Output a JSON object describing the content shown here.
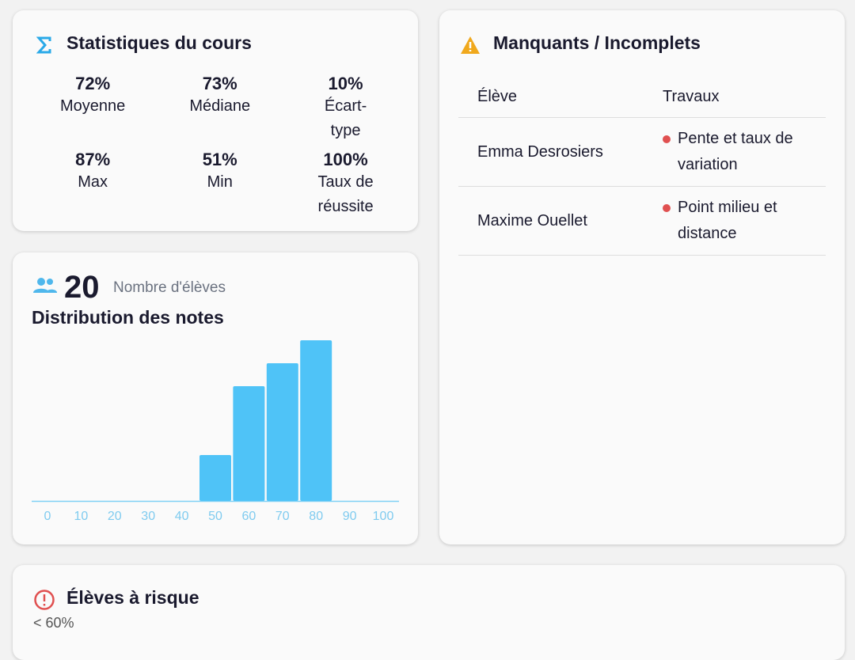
{
  "stats": {
    "title": "Statistiques du cours",
    "items": [
      {
        "value": "72%",
        "label": "Moyenne"
      },
      {
        "value": "73%",
        "label": "Médiane"
      },
      {
        "value": "10%",
        "label": "Écart-type"
      },
      {
        "value": "87%",
        "label": "Max"
      },
      {
        "value": "51%",
        "label": "Min"
      },
      {
        "value": "100%",
        "label": "Taux de réussite"
      }
    ]
  },
  "missing": {
    "title": "Manquants / Incomplets",
    "headers": [
      "Élève",
      "Travaux"
    ],
    "rows": [
      {
        "student": "Emma Desrosiers",
        "work": "Pente et taux de variation"
      },
      {
        "student": "Maxime Ouellet",
        "work": "Point milieu et distance"
      }
    ]
  },
  "students": {
    "count": "20",
    "label": "Nombre d'élèves"
  },
  "chart_data": {
    "type": "bar",
    "title": "Distribution des notes",
    "categories": [
      0,
      10,
      20,
      30,
      40,
      50,
      60,
      70,
      80,
      90,
      100
    ],
    "values": [
      0,
      0,
      0,
      0,
      0,
      2,
      5,
      6,
      7,
      0,
      0
    ],
    "color": "#4fc3f7"
  },
  "risk": {
    "title": "Élèves à risque",
    "subtitle": "< 60%"
  }
}
